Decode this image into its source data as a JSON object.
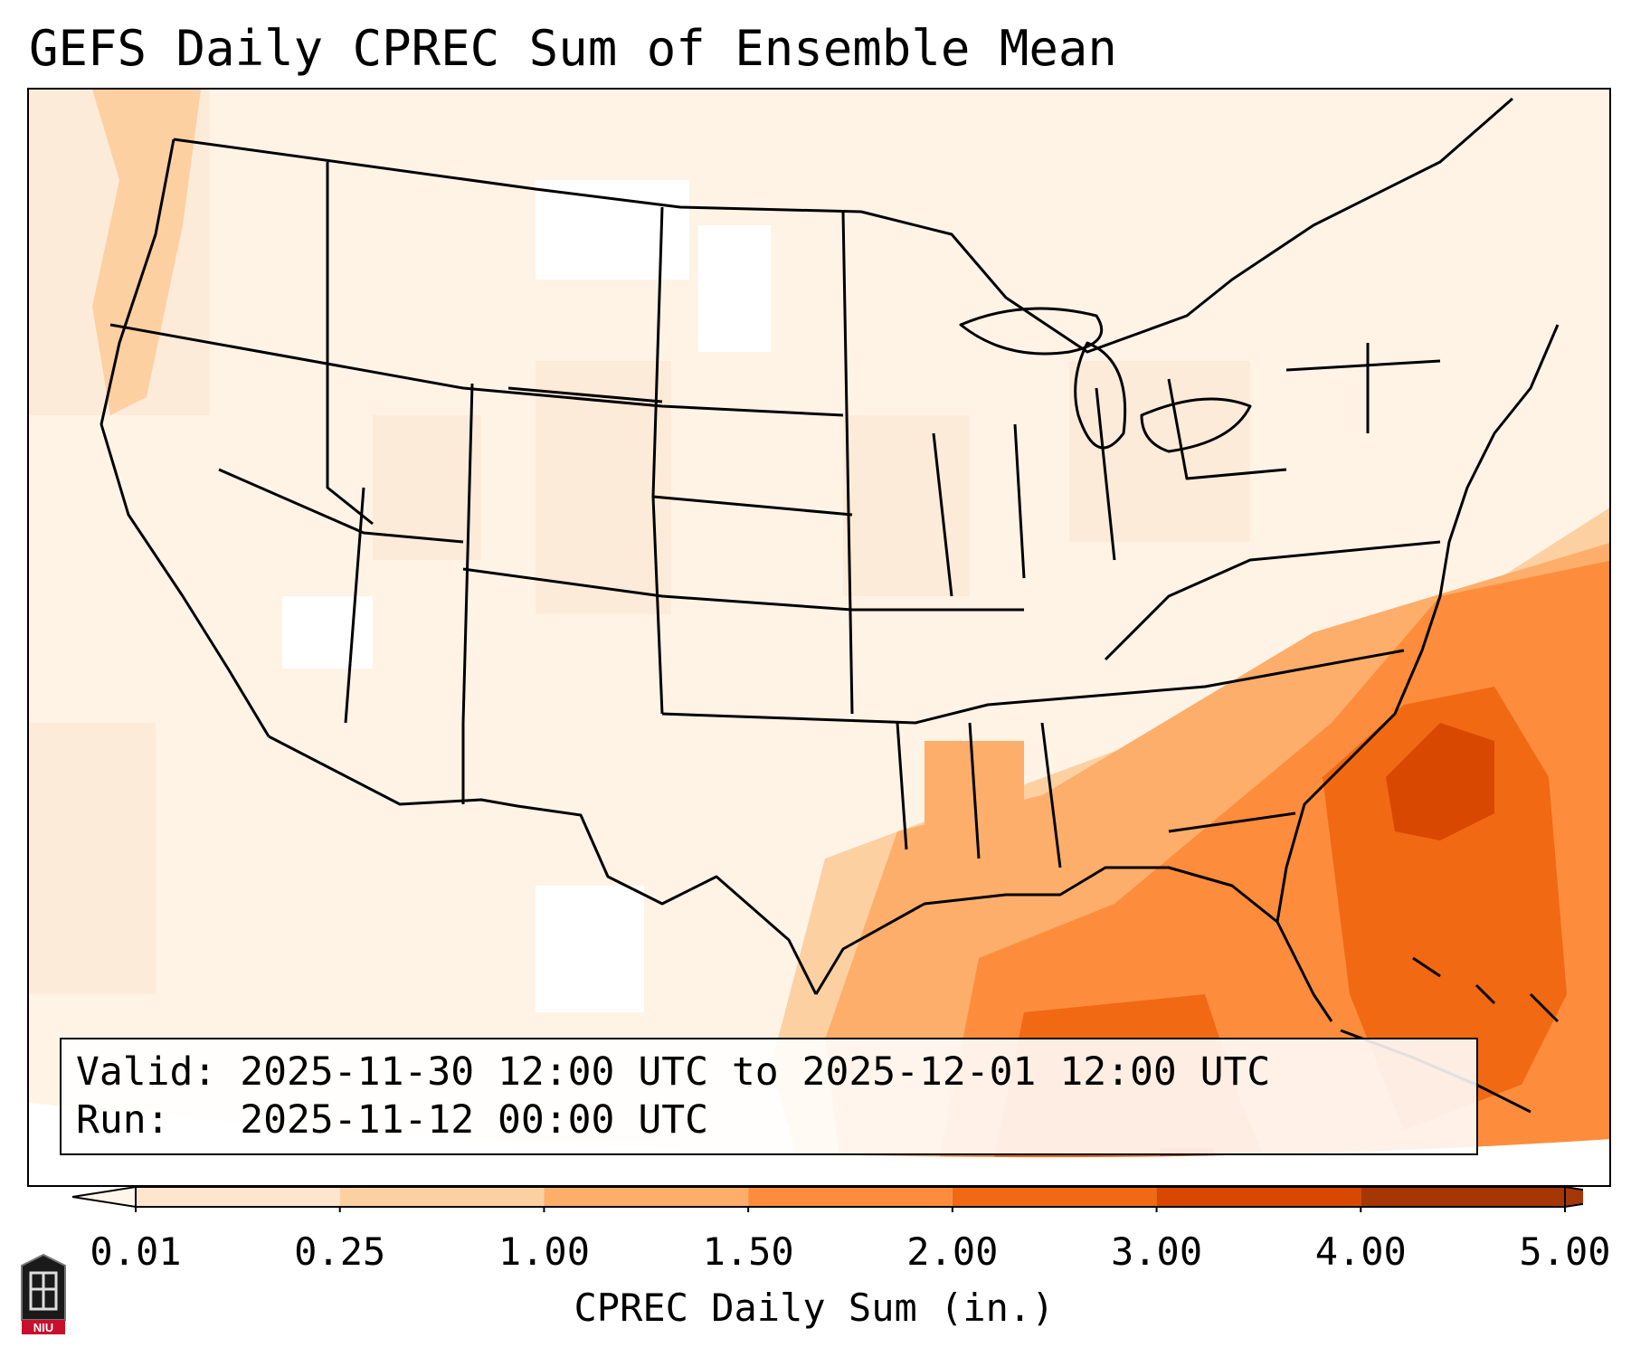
{
  "title": "GEFS Daily CPREC Sum of Ensemble Mean",
  "info": {
    "valid_label": "Valid:",
    "valid_value": "2025-11-30 12:00 UTC to 2025-12-01 12:00 UTC",
    "run_label": "Run:",
    "run_value": "2025-11-12 00:00 UTC"
  },
  "colorbar": {
    "label": "CPREC Daily Sum (in.)",
    "ticks": [
      "0.01",
      "0.25",
      "1.00",
      "1.50",
      "2.00",
      "3.00",
      "4.00",
      "5.00"
    ],
    "colors": [
      "#fff5eb",
      "#fee6ce",
      "#fdd0a2",
      "#fdae6b",
      "#fd8d3c",
      "#f16913",
      "#d94801",
      "#a63603"
    ],
    "extend": "both"
  },
  "map": {
    "projection": "Lambert conformal",
    "region": "Continental United States",
    "max_precip_region": "Gulf of Mexico / western Atlantic off the Southeast coast"
  },
  "logo": {
    "text": "NIU",
    "icon": "niu-logo-icon"
  }
}
